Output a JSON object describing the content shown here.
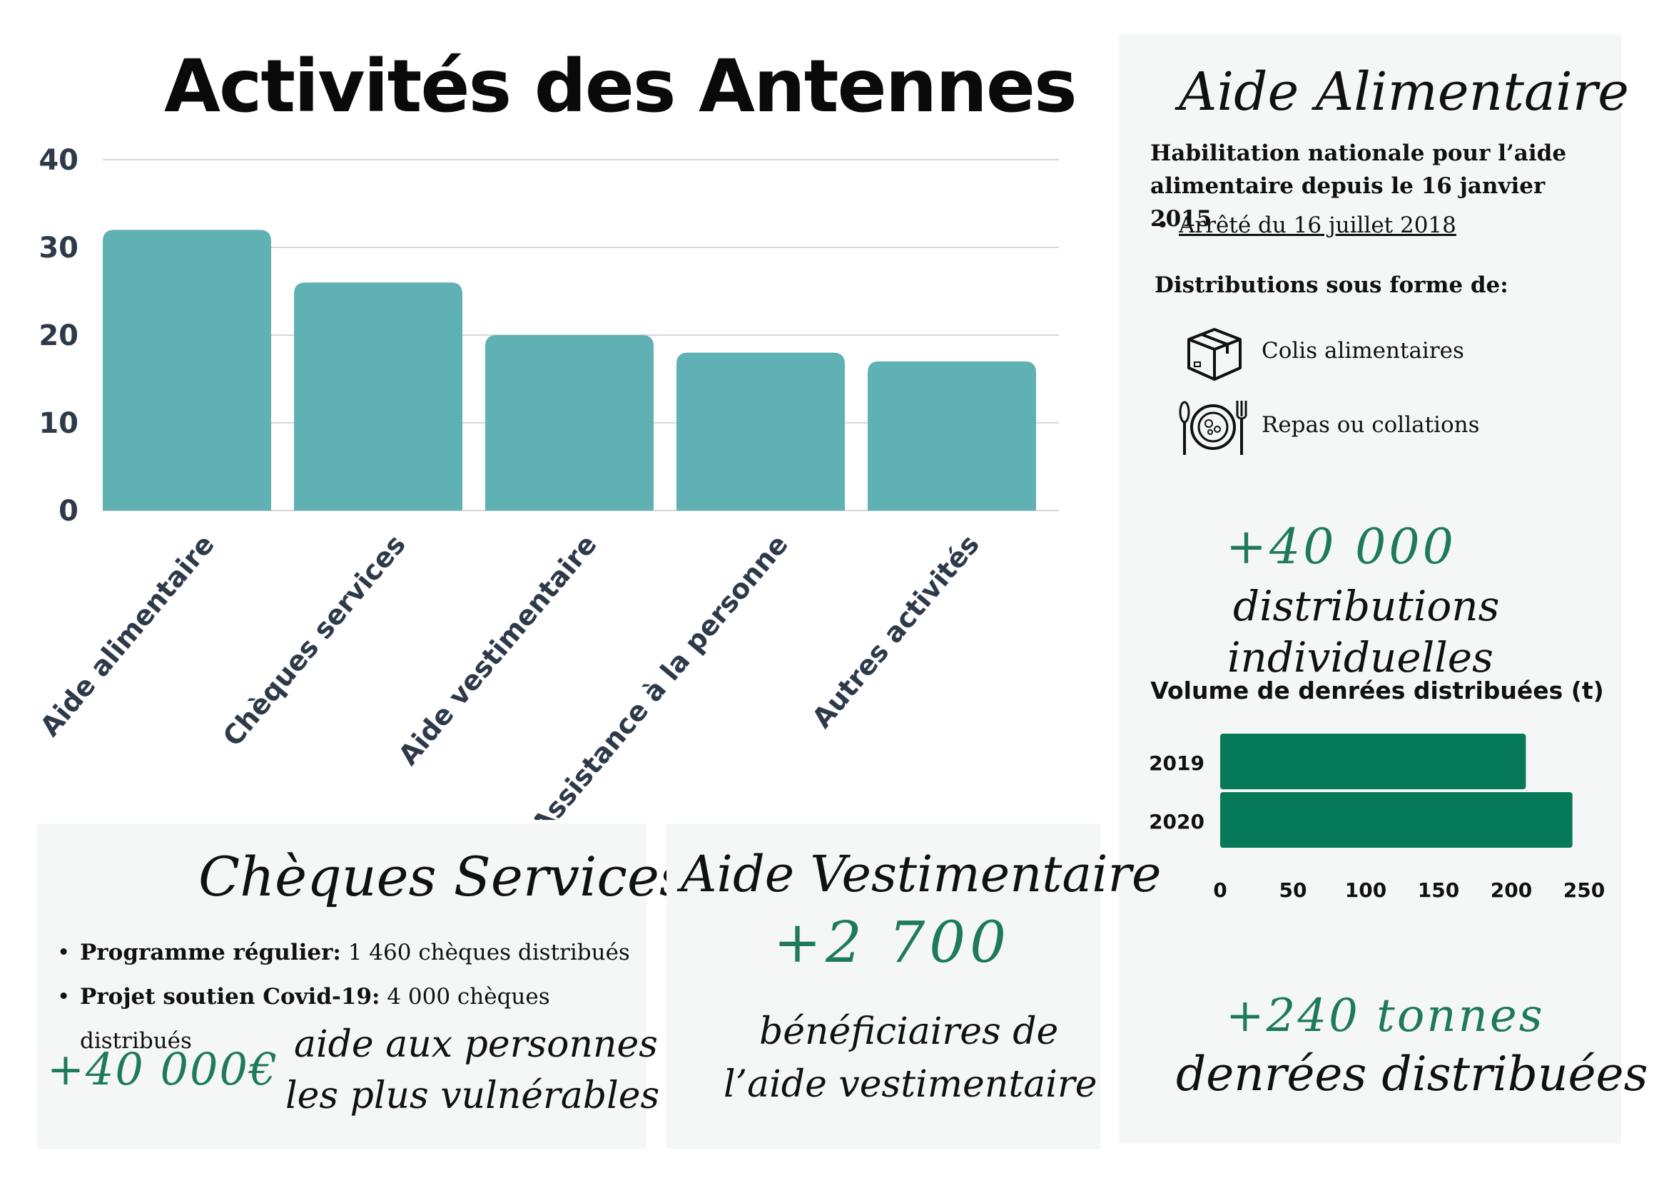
{
  "title": "Activités des Antennes",
  "colors": {
    "bar": "#5fb1b3",
    "green_bar": "#067a58",
    "accent_green": "#1e7a5c",
    "panel_bg": "#f5f6f6",
    "axis_text": "#2e3a4a"
  },
  "chart_data": [
    {
      "type": "bar",
      "title": "Activités des Antennes",
      "categories": [
        "Aide alimentaire",
        "Chèques services",
        "Aide vestimentaire",
        "Assistance à la personne",
        "Autres activités"
      ],
      "values": [
        32,
        26,
        20,
        18,
        17
      ],
      "ylim": [
        0,
        40
      ],
      "yticks": [
        "0",
        "10",
        "20",
        "30",
        "40"
      ],
      "grid": true
    },
    {
      "type": "bar",
      "orientation": "horizontal",
      "title": "Volume de denrées distribuées (t)",
      "categories": [
        "2019",
        "2020"
      ],
      "values": [
        210,
        242
      ],
      "xlim": [
        0,
        250
      ],
      "xticks": [
        "0",
        "50",
        "100",
        "150",
        "200",
        "250"
      ]
    }
  ],
  "aide_alimentaire": {
    "heading": "Aide Alimentaire",
    "habilitation_line1": "Habilitation nationale pour l’aide",
    "habilitation_line2": "alimentaire depuis le 16 janvier 2015",
    "arrete_link": "Arrêté du 16 juillet 2018",
    "distributions_heading": "Distributions sous forme de:",
    "items": [
      {
        "icon": "package-box-icon",
        "label": "Colis alimentaires"
      },
      {
        "icon": "meal-plate-icon",
        "label": "Repas ou collations"
      }
    ],
    "stat_value": "+40 000",
    "stat_label_line1": "distributions",
    "stat_label_line2": "individuelles",
    "tonnes_value": "+240 tonnes",
    "tonnes_label": "denrées distribuées"
  },
  "cheques": {
    "heading": "Chèques Services",
    "items": [
      {
        "bold": "Programme régulier:",
        "text": " 1 460 chèques distribués"
      },
      {
        "bold": "Projet soutien Covid-19:",
        "text": " 4 000 chèques distribués"
      }
    ],
    "amount": "+40 000€",
    "caption_line1": "aide aux personnes",
    "caption_line2": "les plus vulnérables"
  },
  "vestimentaire": {
    "heading": "Aide Vestimentaire",
    "value": "+2 700",
    "caption_line1": "bénéficiaires de",
    "caption_line2": "l’aide vestimentaire"
  }
}
